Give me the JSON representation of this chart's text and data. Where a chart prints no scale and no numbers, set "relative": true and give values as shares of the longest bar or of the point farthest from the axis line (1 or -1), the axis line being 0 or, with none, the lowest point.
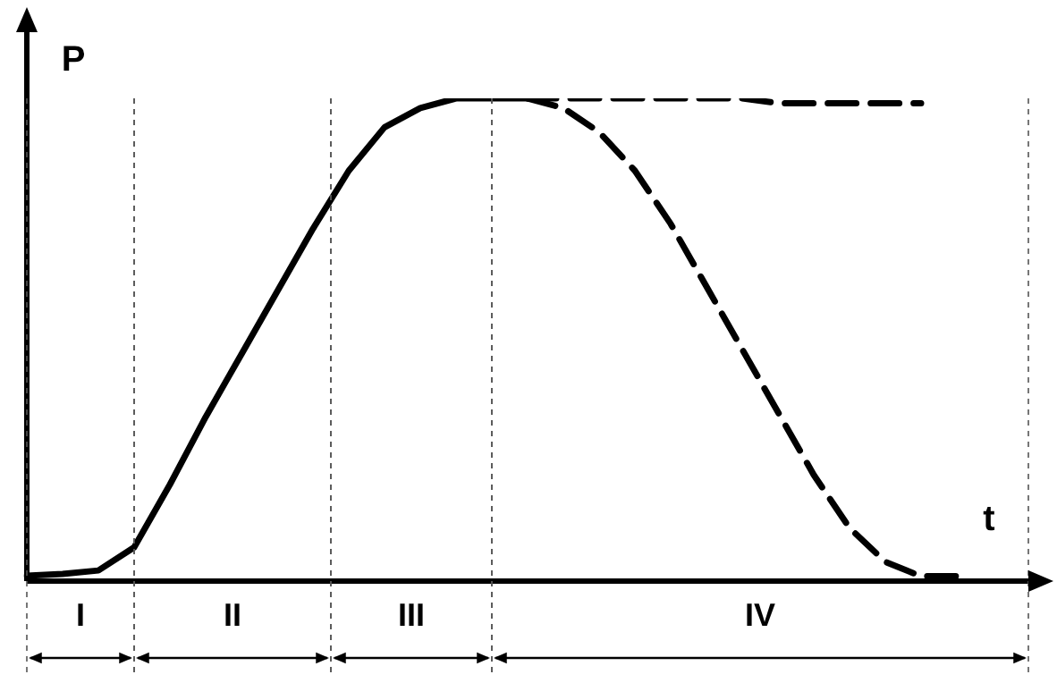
{
  "chart_data": {
    "type": "line",
    "relative": true,
    "xlabel": "t",
    "ylabel": "P",
    "legend": false,
    "grid": "x",
    "marker": "none",
    "categories": [
      null,
      null,
      null,
      null,
      null,
      null,
      null,
      null,
      null,
      null,
      null,
      null,
      null,
      null,
      null,
      null,
      null,
      null,
      null,
      null,
      null,
      null,
      null,
      null,
      null,
      null,
      null,
      null,
      null
    ],
    "series": [
      {
        "color": "#000000",
        "line_style": "solid",
        "values": [
          0.011,
          0.015,
          0.022,
          0.07,
          0.2,
          0.34,
          0.47,
          0.6,
          0.73,
          0.85,
          0.94,
          0.98,
          1,
          1,
          1,
          null,
          null,
          null,
          null,
          null,
          null,
          null,
          null,
          null,
          null,
          null,
          null,
          null,
          null
        ]
      },
      {
        "color": "#000000",
        "line_style": "dashed",
        "values": [
          null,
          null,
          null,
          null,
          null,
          null,
          null,
          null,
          null,
          null,
          null,
          null,
          null,
          null,
          1,
          1,
          1,
          1,
          1,
          1,
          1,
          0.99,
          0.99,
          0.99,
          0.99,
          0.99,
          null,
          null,
          null
        ]
      },
      {
        "color": "#000000",
        "line_style": "dashed",
        "values": [
          null,
          null,
          null,
          null,
          null,
          null,
          null,
          null,
          null,
          null,
          null,
          null,
          null,
          null,
          1,
          0.98,
          0.93,
          0.85,
          0.74,
          0.61,
          0.48,
          0.35,
          0.22,
          0.11,
          0.04,
          0.01,
          0.01,
          null,
          null
        ]
      }
    ],
    "annotations": [
      "I",
      "II",
      "III",
      "IV"
    ]
  }
}
